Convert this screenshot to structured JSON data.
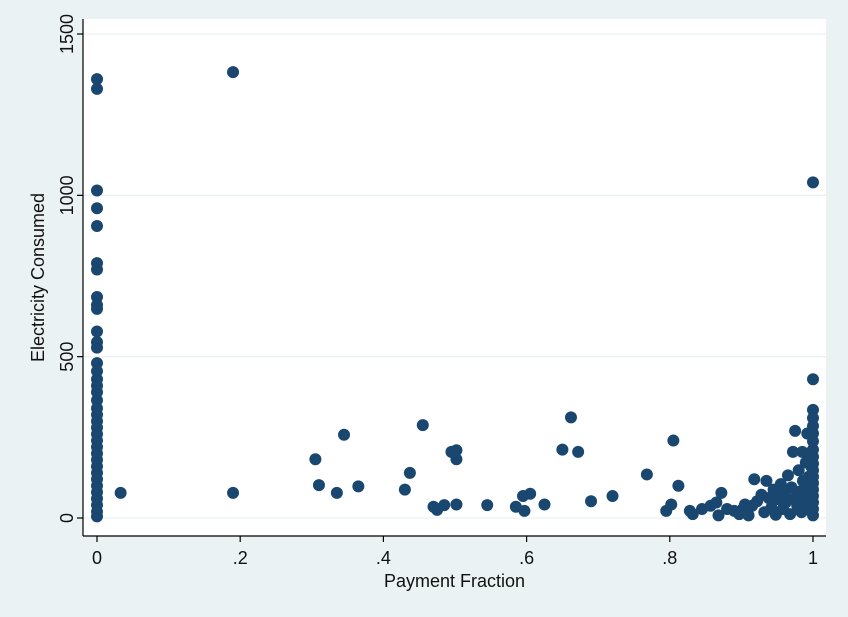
{
  "chart_data": {
    "type": "scatter",
    "title": "",
    "xlabel": "Payment Fraction",
    "ylabel": "Electricity Consumed",
    "xlim": [
      0,
      1
    ],
    "ylim": [
      0,
      1500
    ],
    "xticks": [
      0,
      0.2,
      0.4,
      0.6,
      0.8,
      1
    ],
    "xtick_labels": [
      "0",
      ".2",
      ".4",
      ".6",
      ".8",
      "1"
    ],
    "yticks": [
      0,
      500,
      1000,
      1500
    ],
    "ytick_labels": [
      "0",
      "500",
      "1000",
      "1500"
    ],
    "grid": "horizontal",
    "legend": "none",
    "marker_color": "#1a476f",
    "plot_background": "#ffffff",
    "page_background": "#eaf2f3",
    "points": [
      [
        0,
        1360
      ],
      [
        0,
        1330
      ],
      [
        0,
        1015
      ],
      [
        0,
        960
      ],
      [
        0,
        905
      ],
      [
        0,
        790
      ],
      [
        0,
        770
      ],
      [
        0,
        685
      ],
      [
        0,
        660
      ],
      [
        0,
        648
      ],
      [
        0,
        578
      ],
      [
        0,
        545
      ],
      [
        0,
        528
      ],
      [
        0,
        480
      ],
      [
        0,
        455
      ],
      [
        0,
        430
      ],
      [
        0,
        410
      ],
      [
        0,
        390
      ],
      [
        0,
        365
      ],
      [
        0,
        340
      ],
      [
        0,
        320
      ],
      [
        0,
        300
      ],
      [
        0,
        280
      ],
      [
        0,
        260
      ],
      [
        0,
        240
      ],
      [
        0,
        220
      ],
      [
        0,
        200
      ],
      [
        0,
        180
      ],
      [
        0,
        160
      ],
      [
        0,
        140
      ],
      [
        0,
        120
      ],
      [
        0,
        100
      ],
      [
        0,
        80
      ],
      [
        0,
        60
      ],
      [
        0,
        40
      ],
      [
        0,
        20
      ],
      [
        0,
        5
      ],
      [
        0.033,
        78
      ],
      [
        0.19,
        1382
      ],
      [
        0.19,
        78
      ],
      [
        0.305,
        182
      ],
      [
        0.31,
        102
      ],
      [
        0.335,
        78
      ],
      [
        0.345,
        258
      ],
      [
        0.365,
        98
      ],
      [
        0.43,
        88
      ],
      [
        0.437,
        140
      ],
      [
        0.455,
        288
      ],
      [
        0.47,
        35
      ],
      [
        0.475,
        25
      ],
      [
        0.485,
        40
      ],
      [
        0.495,
        205
      ],
      [
        0.502,
        210
      ],
      [
        0.502,
        182
      ],
      [
        0.502,
        42
      ],
      [
        0.545,
        40
      ],
      [
        0.585,
        35
      ],
      [
        0.595,
        68
      ],
      [
        0.597,
        22
      ],
      [
        0.605,
        75
      ],
      [
        0.625,
        42
      ],
      [
        0.65,
        212
      ],
      [
        0.662,
        312
      ],
      [
        0.672,
        205
      ],
      [
        0.69,
        52
      ],
      [
        0.72,
        68
      ],
      [
        0.768,
        135
      ],
      [
        0.795,
        22
      ],
      [
        0.802,
        42
      ],
      [
        0.805,
        240
      ],
      [
        0.812,
        100
      ],
      [
        0.828,
        22
      ],
      [
        0.832,
        12
      ],
      [
        0.845,
        28
      ],
      [
        0.857,
        38
      ],
      [
        0.865,
        48
      ],
      [
        0.868,
        8
      ],
      [
        0.872,
        78
      ],
      [
        0.88,
        28
      ],
      [
        0.89,
        22
      ],
      [
        0.897,
        12
      ],
      [
        0.902,
        28
      ],
      [
        0.905,
        42
      ],
      [
        0.91,
        8
      ],
      [
        0.915,
        38
      ],
      [
        0.918,
        120
      ],
      [
        0.922,
        52
      ],
      [
        0.928,
        72
      ],
      [
        0.932,
        18
      ],
      [
        0.935,
        115
      ],
      [
        0.938,
        62
      ],
      [
        0.942,
        32
      ],
      [
        0.945,
        88
      ],
      [
        0.948,
        10
      ],
      [
        0.952,
        58
      ],
      [
        0.955,
        105
      ],
      [
        0.958,
        28
      ],
      [
        0.96,
        78
      ],
      [
        0.962,
        48
      ],
      [
        0.965,
        132
      ],
      [
        0.968,
        12
      ],
      [
        0.97,
        95
      ],
      [
        0.972,
        205
      ],
      [
        0.974,
        62
      ],
      [
        0.975,
        270
      ],
      [
        0.978,
        38
      ],
      [
        0.98,
        148
      ],
      [
        0.982,
        82
      ],
      [
        0.984,
        18
      ],
      [
        0.985,
        205
      ],
      [
        0.986,
        115
      ],
      [
        0.988,
        52
      ],
      [
        0.99,
        172
      ],
      [
        0.991,
        90
      ],
      [
        0.992,
        262
      ],
      [
        0.993,
        28
      ],
      [
        0.994,
        128
      ],
      [
        0.995,
        70
      ],
      [
        0.996,
        202
      ],
      [
        0.997,
        45
      ],
      [
        0.998,
        158
      ],
      [
        0.999,
        100
      ],
      [
        1,
        1040
      ],
      [
        1,
        430
      ],
      [
        1,
        335
      ],
      [
        1,
        310
      ],
      [
        1,
        285
      ],
      [
        1,
        262
      ],
      [
        1,
        238
      ],
      [
        1,
        212
      ],
      [
        1,
        190
      ],
      [
        1,
        168
      ],
      [
        1,
        148
      ],
      [
        1,
        128
      ],
      [
        1,
        108
      ],
      [
        1,
        88
      ],
      [
        1,
        68
      ],
      [
        1,
        48
      ],
      [
        1,
        28
      ],
      [
        1,
        8
      ]
    ]
  }
}
